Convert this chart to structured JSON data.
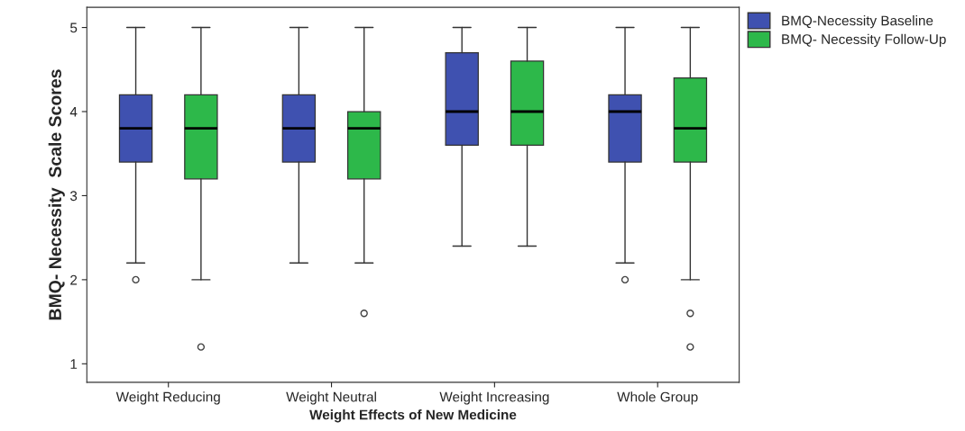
{
  "chart_data": {
    "type": "box",
    "xlabel": "Weight Effects of New Medicine",
    "ylabel": "BMQ- Necessity  Scale Scores",
    "categories": [
      "Weight Reducing",
      "Weight Neutral",
      "Weight Increasing",
      "Whole Group"
    ],
    "series": [
      {
        "name": "BMQ-Necessity Baseline",
        "color": "#3f51b0",
        "boxes": [
          {
            "low": 2.2,
            "q1": 3.4,
            "median": 3.8,
            "q3": 4.2,
            "high": 5,
            "outliers": [
              2.0
            ]
          },
          {
            "low": 2.2,
            "q1": 3.4,
            "median": 3.8,
            "q3": 4.2,
            "high": 5
          },
          {
            "low": 2.4,
            "q1": 3.6,
            "median": 4.0,
            "q3": 4.7,
            "high": 5
          },
          {
            "low": 2.2,
            "q1": 3.4,
            "median": 4.0,
            "q3": 4.2,
            "high": 5,
            "outliers": [
              2.0
            ]
          }
        ]
      },
      {
        "name": "BMQ- Necessity Follow-Up",
        "color": "#2db84a",
        "boxes": [
          {
            "low": 2.0,
            "q1": 3.2,
            "median": 3.8,
            "q3": 4.2,
            "high": 5,
            "outliers": [
              1.2
            ]
          },
          {
            "low": 2.2,
            "q1": 3.2,
            "median": 3.8,
            "q3": 4.0,
            "high": 5,
            "outliers": [
              1.6
            ]
          },
          {
            "low": 2.4,
            "q1": 3.6,
            "median": 4.0,
            "q3": 4.6,
            "high": 5
          },
          {
            "low": 2.0,
            "q1": 3.4,
            "median": 3.8,
            "q3": 4.4,
            "high": 5,
            "outliers": [
              1.6,
              1.2
            ]
          }
        ]
      }
    ],
    "ylim": [
      0.78,
      5.24
    ],
    "yticks": [
      1,
      2,
      3,
      4,
      5
    ],
    "grid": false,
    "legend": "top right"
  }
}
